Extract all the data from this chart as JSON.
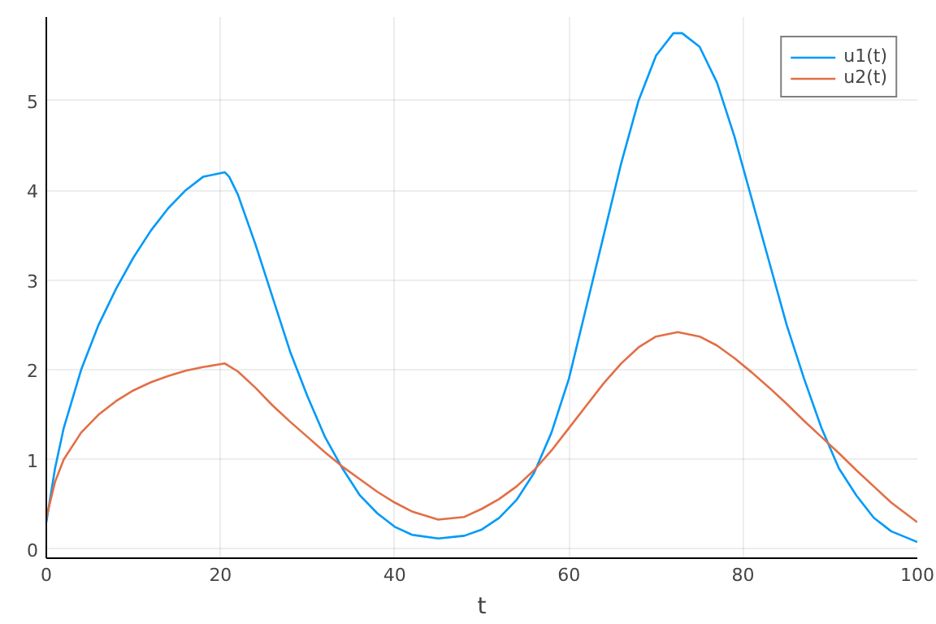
{
  "chart_data": {
    "type": "line",
    "xlabel": "t",
    "xlim": [
      0,
      100
    ],
    "ylim": [
      -0.1,
      5.93
    ],
    "xticks": [
      0,
      20,
      40,
      60,
      80,
      100
    ],
    "yticks": [
      0,
      1,
      2,
      3,
      4,
      5
    ],
    "grid": true,
    "legend": "top right",
    "marker": "none",
    "line_style": "solid",
    "series": [
      {
        "name": "u1(t)",
        "color": "#009af9",
        "x": [
          0,
          1,
          2,
          4,
          6,
          8,
          10,
          12,
          14,
          16,
          18,
          20.5,
          21,
          22,
          24,
          26,
          28,
          30,
          32,
          34,
          36,
          38,
          40,
          42,
          45,
          48,
          50,
          52,
          54,
          56,
          58,
          60,
          62,
          64,
          66,
          68,
          70,
          72,
          73,
          75,
          77,
          79,
          81,
          83,
          85,
          87,
          89,
          91,
          93,
          95,
          97,
          100
        ],
        "values": [
          0.3,
          0.9,
          1.35,
          2.0,
          2.5,
          2.9,
          3.25,
          3.55,
          3.8,
          4.0,
          4.15,
          4.2,
          4.15,
          3.95,
          3.4,
          2.8,
          2.2,
          1.7,
          1.25,
          0.9,
          0.6,
          0.4,
          0.25,
          0.16,
          0.12,
          0.15,
          0.22,
          0.35,
          0.55,
          0.85,
          1.3,
          1.9,
          2.7,
          3.5,
          4.3,
          5.0,
          5.5,
          5.75,
          5.75,
          5.6,
          5.2,
          4.6,
          3.9,
          3.2,
          2.5,
          1.9,
          1.35,
          0.9,
          0.6,
          0.35,
          0.2,
          0.08
        ]
      },
      {
        "name": "u2(t)",
        "color": "#e26f46",
        "x": [
          0,
          1,
          2,
          4,
          6,
          8,
          10,
          12,
          14,
          16,
          18,
          20.5,
          22,
          24,
          26,
          28,
          30,
          32,
          34,
          36,
          38,
          40,
          42,
          45,
          48,
          50,
          52,
          54,
          56,
          58,
          60,
          62,
          64,
          66,
          68,
          70,
          72.5,
          75,
          77,
          79,
          81,
          83,
          85,
          87,
          89,
          91,
          93,
          95,
          97,
          100
        ],
        "values": [
          0.35,
          0.75,
          1.0,
          1.3,
          1.5,
          1.65,
          1.77,
          1.86,
          1.93,
          1.99,
          2.03,
          2.07,
          1.98,
          1.8,
          1.6,
          1.42,
          1.25,
          1.08,
          0.92,
          0.78,
          0.64,
          0.52,
          0.42,
          0.33,
          0.36,
          0.45,
          0.56,
          0.7,
          0.88,
          1.1,
          1.35,
          1.6,
          1.85,
          2.07,
          2.25,
          2.37,
          2.42,
          2.37,
          2.27,
          2.13,
          1.97,
          1.8,
          1.62,
          1.43,
          1.25,
          1.07,
          0.88,
          0.7,
          0.52,
          0.3
        ]
      }
    ]
  }
}
